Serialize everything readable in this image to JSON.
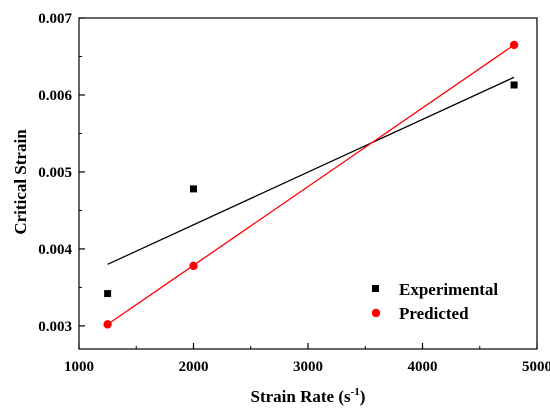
{
  "chart_data": {
    "type": "scatter",
    "xlabel": "Strain Rate (s",
    "xlabel_sup": "-1",
    "xlabel_close": ")",
    "ylabel": "Critical Strain",
    "xlim": [
      1000,
      5000
    ],
    "ylim": [
      0.0027,
      0.007
    ],
    "x_ticks": [
      1000,
      2000,
      3000,
      4000,
      5000
    ],
    "x_tick_labels": [
      "1000",
      "2000",
      "3000",
      "4000",
      "5000"
    ],
    "y_ticks": [
      0.003,
      0.004,
      0.005,
      0.006,
      0.007
    ],
    "y_tick_labels": [
      "0.003",
      "0.004",
      "0.005",
      "0.006",
      "0.007"
    ],
    "grid": false,
    "legend_position": "bottom-right",
    "series": [
      {
        "name": "Experimental",
        "marker": "square",
        "color": "#000000",
        "x": [
          1250,
          2000,
          4800
        ],
        "y": [
          0.00342,
          0.00478,
          0.00613
        ],
        "fit_line": {
          "x": [
            1250,
            4800
          ],
          "y": [
            0.0038,
            0.00623
          ]
        }
      },
      {
        "name": "Predicted",
        "marker": "circle",
        "color": "#ff0000",
        "x": [
          1250,
          2000,
          4800
        ],
        "y": [
          0.00302,
          0.00378,
          0.00665
        ],
        "fit_line": {
          "x": [
            1250,
            4800
          ],
          "y": [
            0.00302,
            0.00665
          ]
        }
      }
    ]
  }
}
